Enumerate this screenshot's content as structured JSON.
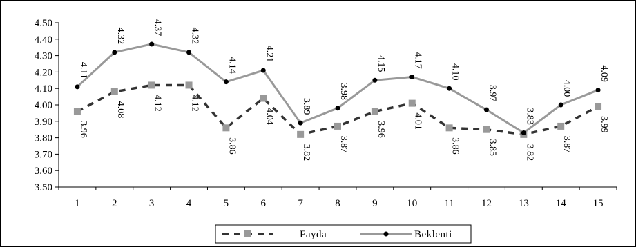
{
  "chart_data": {
    "type": "line",
    "title": "",
    "xlabel": "",
    "ylabel": "",
    "x": [
      1,
      2,
      3,
      4,
      5,
      6,
      7,
      8,
      9,
      10,
      11,
      12,
      13,
      14,
      15
    ],
    "ylim": [
      3.5,
      4.5
    ],
    "y_ticks": [
      "3.50",
      "3.60",
      "3.70",
      "3.80",
      "3.90",
      "4.00",
      "4.10",
      "4.20",
      "4.30",
      "4.40",
      "4.50"
    ],
    "grid": false,
    "legend_position": "bottom",
    "series": [
      {
        "name": "Fayda",
        "style": "dashed",
        "marker": "square",
        "color": "#999999",
        "line_color": "#333333",
        "values": [
          3.96,
          4.08,
          4.12,
          4.12,
          3.86,
          4.04,
          3.82,
          3.87,
          3.96,
          4.01,
          3.86,
          3.85,
          3.82,
          3.87,
          3.99
        ],
        "labels": [
          "3.96",
          "4.08",
          "4.12",
          "4.12",
          "3.86",
          "4.04",
          "3.82",
          "3.87",
          "3.96",
          "4.01",
          "3.86",
          "3.85",
          "3.82",
          "3.87",
          "3.99"
        ]
      },
      {
        "name": "Beklenti",
        "style": "solid",
        "marker": "circle",
        "color": "#000000",
        "line_color": "#999999",
        "values": [
          4.11,
          4.32,
          4.37,
          4.32,
          4.14,
          4.21,
          3.89,
          3.98,
          4.15,
          4.17,
          4.1,
          3.97,
          3.83,
          4.0,
          4.09
        ],
        "labels": [
          "4.11",
          "4.32",
          "4.37",
          "4.32",
          "4.14",
          "4.21",
          "3.89",
          "3.98",
          "4.15",
          "4.17",
          "4.10",
          "3.97",
          "3.83",
          "4.00",
          "4.09"
        ]
      }
    ]
  }
}
